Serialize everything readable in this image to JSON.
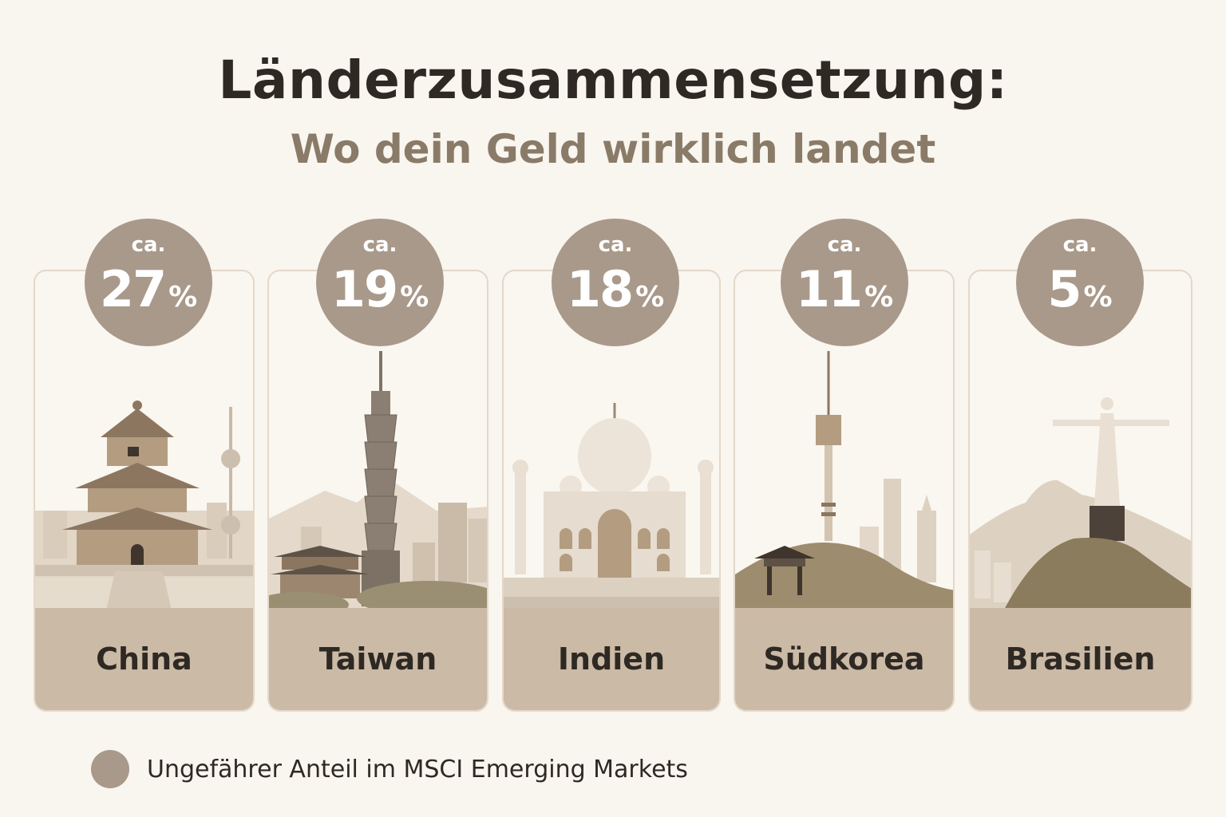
{
  "header": {
    "title": "Länderzusammensetzung:",
    "subtitle": "Wo dein Geld wirklich landet"
  },
  "countries": [
    {
      "name": "China",
      "prefix": "ca.",
      "value": "27",
      "unit": "%",
      "landmark": "temple-of-heaven-icon"
    },
    {
      "name": "Taiwan",
      "prefix": "ca.",
      "value": "19",
      "unit": "%",
      "landmark": "taipei-101-icon"
    },
    {
      "name": "Indien",
      "prefix": "ca.",
      "value": "18",
      "unit": "%",
      "landmark": "taj-mahal-icon"
    },
    {
      "name": "Südkorea",
      "prefix": "ca.",
      "value": "11",
      "unit": "%",
      "landmark": "n-seoul-tower-icon"
    },
    {
      "name": "Brasilien",
      "prefix": "ca.",
      "value": "5",
      "unit": "%",
      "landmark": "christ-the-redeemer-icon"
    }
  ],
  "legend": {
    "text": "Ungefährer Anteil im MSCI Emerging Markets"
  },
  "colors": {
    "background": "#f9f5ef",
    "badge": "#a8998a",
    "label_band": "#cbbaa6",
    "title": "#2f2924",
    "subtitle": "#8a7b68"
  }
}
